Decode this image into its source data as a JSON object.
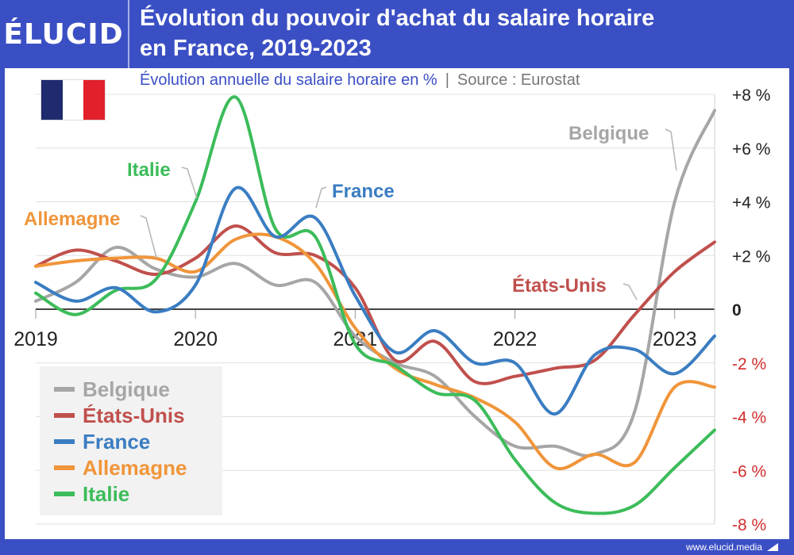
{
  "brand": {
    "logo": "ÉLUCID",
    "url": "www.elucid.media"
  },
  "header": {
    "title": "Évolution du pouvoir d'achat du salaire horaire\nen France, 2019-2023"
  },
  "subtitle": {
    "text": "Évolution annuelle du salaire horaire en %",
    "separator": "|",
    "source": "Source : Eurostat"
  },
  "flag": {
    "colors": [
      "#1f2b6e",
      "#ffffff",
      "#e2202c"
    ]
  },
  "colors": {
    "accent": "#3b4fc4",
    "negative_tick": "#d22d2d",
    "positive_tick": "#222222"
  },
  "chart_data": {
    "type": "line",
    "title": "Évolution du pouvoir d'achat du salaire horaire en France, 2019-2023",
    "ylabel": "Évolution annuelle du salaire horaire en %",
    "xlim": [
      2019.0,
      2023.25
    ],
    "ylim": [
      -8,
      8
    ],
    "x_ticks": [
      2019,
      2020,
      2021,
      2022,
      2023
    ],
    "x_tick_labels": [
      "2019",
      "2020",
      "2021",
      "2022",
      "2023"
    ],
    "y_ticks": [
      8,
      6,
      4,
      2,
      0,
      -2,
      -4,
      -6,
      -8
    ],
    "y_tick_labels": [
      "+8 %",
      "+6 %",
      "+4 %",
      "+2 %",
      "0",
      "-2 %",
      "-4 %",
      "-6 %",
      "-8 %"
    ],
    "grid": true,
    "legend_position": "bottom-left",
    "series": [
      {
        "name": "Belgique",
        "color": "#a6a6a6",
        "x": [
          2019.0,
          2019.25,
          2019.5,
          2019.75,
          2020.0,
          2020.25,
          2020.5,
          2020.75,
          2021.0,
          2021.25,
          2021.5,
          2021.75,
          2022.0,
          2022.25,
          2022.5,
          2022.75,
          2023.0,
          2023.25
        ],
        "y": [
          0.3,
          1.0,
          2.3,
          1.5,
          1.2,
          1.7,
          0.9,
          1.0,
          -1.0,
          -2.0,
          -2.5,
          -4.0,
          -5.1,
          -5.1,
          -5.4,
          -3.8,
          4.0,
          7.4
        ]
      },
      {
        "name": "États-Unis",
        "color": "#c0504d",
        "x": [
          2019.0,
          2019.25,
          2019.5,
          2019.75,
          2020.0,
          2020.25,
          2020.5,
          2020.75,
          2021.0,
          2021.25,
          2021.5,
          2021.75,
          2022.0,
          2022.25,
          2022.5,
          2022.75,
          2023.0,
          2023.25
        ],
        "y": [
          1.6,
          2.2,
          1.8,
          1.3,
          1.9,
          3.1,
          2.1,
          2.0,
          0.8,
          -1.9,
          -1.2,
          -2.7,
          -2.5,
          -2.2,
          -1.9,
          -0.2,
          1.4,
          2.5
        ]
      },
      {
        "name": "France",
        "color": "#3a7dc2",
        "x": [
          2019.0,
          2019.25,
          2019.5,
          2019.75,
          2020.0,
          2020.25,
          2020.5,
          2020.75,
          2021.0,
          2021.25,
          2021.5,
          2021.75,
          2022.0,
          2022.25,
          2022.5,
          2022.75,
          2023.0,
          2023.25
        ],
        "y": [
          1.0,
          0.3,
          0.8,
          -0.1,
          0.9,
          4.5,
          2.7,
          3.4,
          0.5,
          -1.6,
          -0.8,
          -2.0,
          -2.0,
          -3.9,
          -1.7,
          -1.5,
          -2.4,
          -1.0
        ]
      },
      {
        "name": "Allemagne",
        "color": "#f0953a",
        "x": [
          2019.0,
          2019.25,
          2019.5,
          2019.75,
          2020.0,
          2020.25,
          2020.5,
          2020.75,
          2021.0,
          2021.25,
          2021.5,
          2021.75,
          2022.0,
          2022.25,
          2022.5,
          2022.75,
          2023.0,
          2023.25
        ],
        "y": [
          1.6,
          1.8,
          1.9,
          1.9,
          1.4,
          2.6,
          2.7,
          1.7,
          -0.7,
          -2.2,
          -2.8,
          -3.3,
          -4.2,
          -5.9,
          -5.4,
          -5.7,
          -2.9,
          -2.9
        ]
      },
      {
        "name": "Italie",
        "color": "#3cbc5a",
        "x": [
          2019.0,
          2019.25,
          2019.5,
          2019.75,
          2020.0,
          2020.25,
          2020.5,
          2020.75,
          2021.0,
          2021.25,
          2021.5,
          2021.75,
          2022.0,
          2022.25,
          2022.5,
          2022.75,
          2023.0,
          2023.25
        ],
        "y": [
          0.6,
          -0.2,
          0.7,
          1.1,
          4.0,
          7.9,
          3.0,
          2.7,
          -1.3,
          -2.1,
          -3.1,
          -3.4,
          -5.6,
          -7.2,
          -7.6,
          -7.3,
          -5.9,
          -4.5
        ]
      }
    ],
    "annotations": [
      {
        "text": "Belgique",
        "series": "Belgique"
      },
      {
        "text": "États-Unis",
        "series": "États-Unis"
      },
      {
        "text": "France",
        "series": "France"
      },
      {
        "text": "Allemagne",
        "series": "Allemagne"
      },
      {
        "text": "Italie",
        "series": "Italie"
      }
    ]
  },
  "legend": {
    "items": [
      {
        "label": "Belgique",
        "color": "#a6a6a6"
      },
      {
        "label": "États-Unis",
        "color": "#c0504d"
      },
      {
        "label": "France",
        "color": "#3a7dc2"
      },
      {
        "label": "Allemagne",
        "color": "#f0953a"
      },
      {
        "label": "Italie",
        "color": "#3cbc5a"
      }
    ]
  }
}
